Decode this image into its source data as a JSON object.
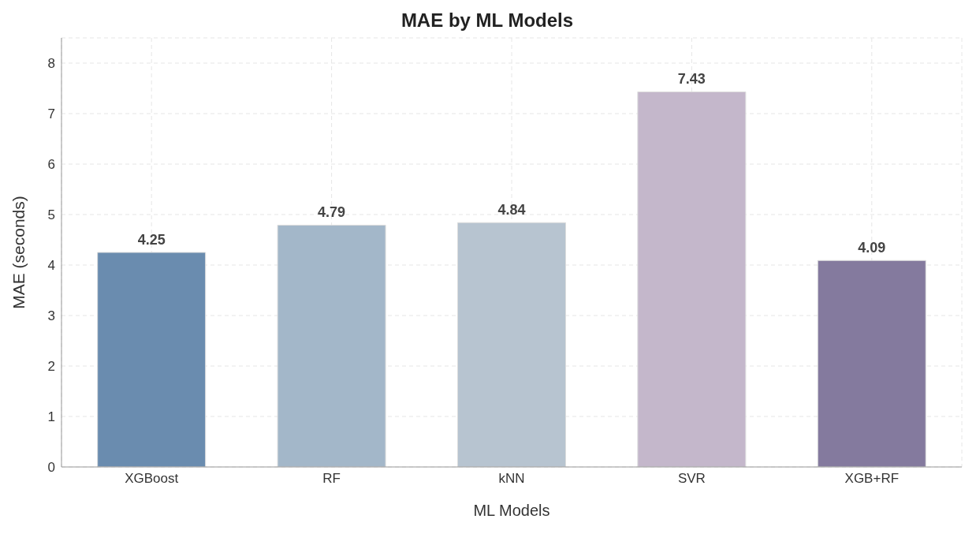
{
  "chart_data": {
    "type": "bar",
    "title": "MAE by ML Models",
    "xlabel": "ML Models",
    "ylabel": "MAE (seconds)",
    "categories": [
      "XGBoost",
      "RF",
      "kNN",
      "SVR",
      "XGB+RF"
    ],
    "values": [
      4.25,
      4.79,
      4.84,
      7.43,
      4.09
    ],
    "colors": [
      "#6a8caf",
      "#a3b7c9",
      "#b7c4d0",
      "#c4b7cb",
      "#847a9e"
    ],
    "ylim": [
      0,
      8.5
    ],
    "yticks": [
      0,
      1,
      2,
      3,
      4,
      5,
      6,
      7,
      8
    ],
    "grid": true,
    "data_labels": true
  }
}
